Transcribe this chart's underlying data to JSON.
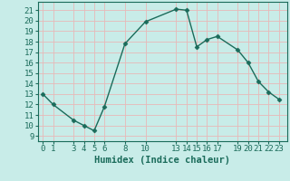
{
  "x": [
    0,
    1,
    3,
    4,
    5,
    6,
    8,
    10,
    13,
    14,
    15,
    16,
    17,
    19,
    20,
    21,
    22,
    23
  ],
  "y": [
    13,
    12,
    10.5,
    10,
    9.5,
    11.8,
    17.8,
    19.9,
    21.1,
    21.0,
    17.5,
    18.2,
    18.5,
    17.2,
    16.0,
    14.2,
    13.2,
    12.5
  ],
  "xticks": [
    0,
    1,
    3,
    4,
    5,
    6,
    8,
    10,
    13,
    14,
    15,
    16,
    17,
    19,
    20,
    21,
    22,
    23
  ],
  "yticks": [
    9,
    10,
    11,
    12,
    13,
    14,
    15,
    16,
    17,
    18,
    19,
    20,
    21
  ],
  "ylim": [
    8.5,
    21.8
  ],
  "xlim": [
    -0.5,
    23.8
  ],
  "xlabel": "Humidex (Indice chaleur)",
  "line_color": "#1a6b5a",
  "marker_color": "#1a6b5a",
  "bg_color": "#c8ece8",
  "grid_color": "#e8b8b8",
  "tick_label_color": "#1a6b5a",
  "xlabel_color": "#1a6b5a",
  "xlabel_fontsize": 7.5,
  "tick_fontsize": 6.5,
  "linewidth": 1.0,
  "markersize": 2.5
}
